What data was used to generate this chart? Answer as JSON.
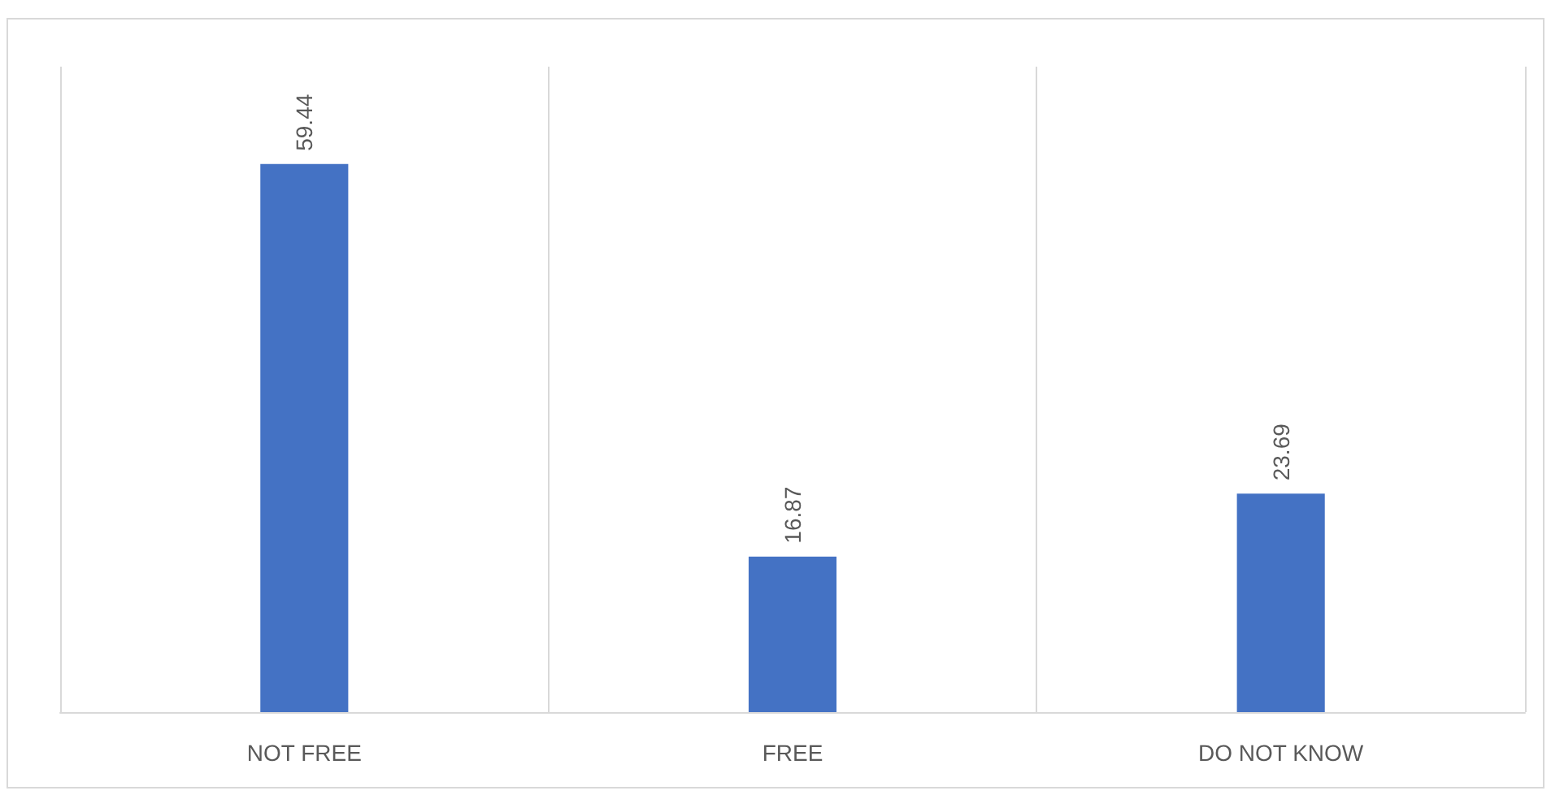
{
  "chart_data": {
    "type": "bar",
    "categories": [
      "NOT FREE",
      "FREE",
      "DO NOT KNOW"
    ],
    "series": [
      {
        "color": "#4472c4",
        "values": [
          59.44,
          16.87,
          23.69
        ]
      }
    ],
    "ylim": [
      0,
      70
    ],
    "data_labels": true,
    "grid": "x",
    "tick_labels": "x"
  }
}
